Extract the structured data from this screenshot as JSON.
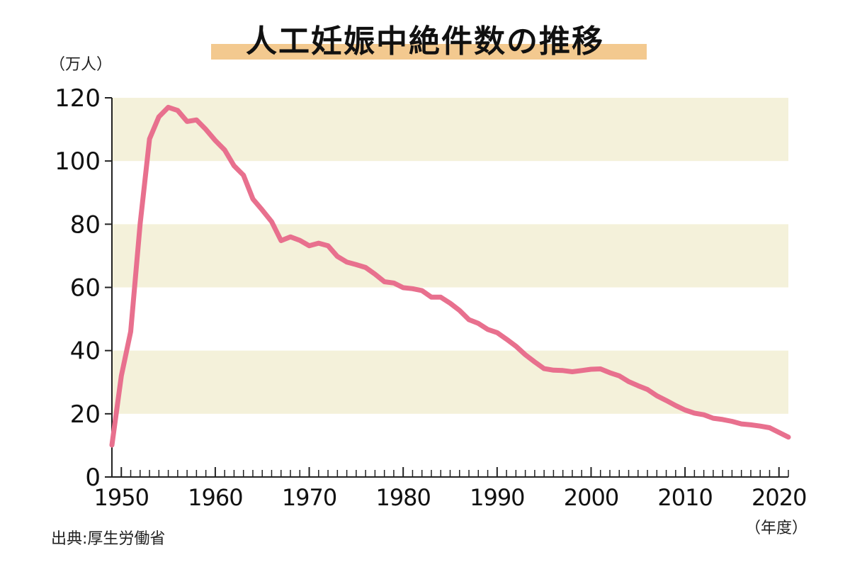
{
  "chart_data": {
    "type": "line",
    "title": "人工妊娠中絶件数の推移",
    "ylabel": "（万人）",
    "xlabel": "（年度）",
    "source": "出典:厚生労働省",
    "ylim": [
      0,
      120
    ],
    "xlim": [
      1949,
      2021
    ],
    "y_ticks": [
      "0",
      "20",
      "40",
      "60",
      "80",
      "100",
      "120"
    ],
    "x_ticks": [
      "1950",
      "1960",
      "1970",
      "1980",
      "1990",
      "2000",
      "2010",
      "2020"
    ],
    "bands": [
      [
        20,
        40
      ],
      [
        60,
        80
      ],
      [
        100,
        120
      ]
    ],
    "colors": {
      "line": "#e8708e",
      "band": "#f4f1da",
      "axis": "#222222"
    },
    "series": [
      {
        "x": [
          1949,
          1950,
          1951,
          1952,
          1953,
          1954,
          1955,
          1956,
          1957,
          1958,
          1959,
          1960,
          1961,
          1962,
          1963,
          1964,
          1965,
          1966,
          1967,
          1968,
          1969,
          1970,
          1971,
          1972,
          1973,
          1974,
          1975,
          1976,
          1977,
          1978,
          1979,
          1980,
          1981,
          1982,
          1983,
          1984,
          1985,
          1986,
          1987,
          1988,
          1989,
          1990,
          1991,
          1992,
          1993,
          1994,
          1995,
          1996,
          1997,
          1998,
          1999,
          2000,
          2001,
          2002,
          2003,
          2004,
          2005,
          2006,
          2007,
          2008,
          2009,
          2010,
          2011,
          2012,
          2013,
          2014,
          2015,
          2016,
          2017,
          2018,
          2019,
          2020,
          2021
        ],
        "values": [
          10.1,
          32.0,
          46.0,
          80.0,
          107.0,
          114.0,
          117.0,
          116.0,
          112.5,
          113.0,
          110.0,
          106.5,
          103.5,
          98.5,
          95.5,
          88.0,
          84.5,
          80.8,
          74.8,
          76.0,
          74.9,
          73.2,
          74.0,
          73.2,
          69.8,
          68.0,
          67.2,
          66.3,
          64.2,
          61.8,
          61.4,
          59.9,
          59.6,
          59.0,
          56.9,
          56.9,
          55.0,
          52.7,
          49.8,
          48.6,
          46.7,
          45.7,
          43.6,
          41.4,
          38.7,
          36.4,
          34.3,
          33.8,
          33.7,
          33.3,
          33.7,
          34.1,
          34.2,
          33.0,
          32.0,
          30.2,
          28.9,
          27.7,
          25.7,
          24.2,
          22.6,
          21.2,
          20.2,
          19.7,
          18.6,
          18.2,
          17.6,
          16.8,
          16.5,
          16.1,
          15.6,
          14.1,
          12.6
        ]
      }
    ]
  }
}
